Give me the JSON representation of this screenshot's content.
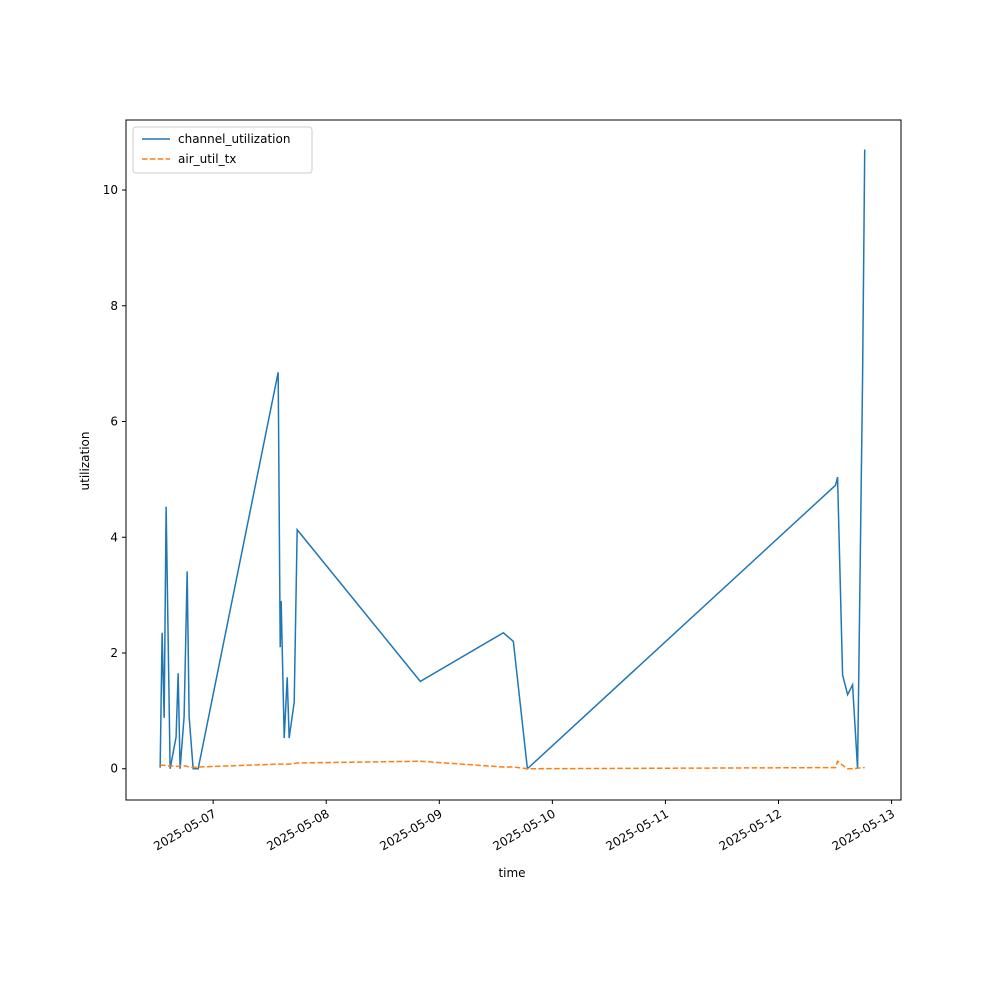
{
  "chart_data": {
    "type": "line",
    "xlabel": "time",
    "ylabel": "utilization",
    "x": [
      "2025-05-06 12:45",
      "2025-05-06 13:10",
      "2025-05-06 13:36",
      "2025-05-06 14:01",
      "2025-05-06 14:52",
      "2025-05-06 16:08",
      "2025-05-06 16:34",
      "2025-05-06 16:59",
      "2025-05-06 17:50",
      "2025-05-06 18:29",
      "2025-05-06 18:54",
      "2025-05-06 19:45",
      "2025-05-06 20:49",
      "2025-05-07 13:48",
      "2025-05-07 14:14",
      "2025-05-07 14:26",
      "2025-05-07 15:05",
      "2025-05-07 15:43",
      "2025-05-07 16:08",
      "2025-05-07 17:12",
      "2025-05-07 17:50",
      "2025-05-08 19:58",
      "2025-05-09 13:36",
      "2025-05-09 15:43",
      "2025-05-09 18:42",
      "2025-05-12 12:07",
      "2025-05-12 12:32",
      "2025-05-12 13:36",
      "2025-05-12 14:40",
      "2025-05-12 15:43",
      "2025-05-12 16:47",
      "2025-05-12 17:51",
      "2025-05-12 18:18"
    ],
    "series": [
      {
        "name": "channel_utilization",
        "color": "#1f77b4",
        "dash": false,
        "values": [
          0.02,
          2.35,
          0.88,
          4.53,
          0.0,
          0.55,
          1.65,
          0.0,
          0.9,
          3.41,
          0.9,
          0.0,
          0.0,
          6.85,
          2.1,
          2.9,
          0.53,
          1.58,
          0.53,
          1.15,
          4.13,
          1.51,
          2.35,
          2.2,
          0.0,
          4.9,
          5.04,
          1.62,
          1.28,
          1.45,
          0.0,
          6.8,
          10.7
        ]
      },
      {
        "name": "air_util_tx",
        "color": "#ff7f0e",
        "dash": true,
        "values": [
          0.07,
          0.06,
          0.06,
          0.05,
          0.05,
          0.04,
          0.04,
          0.05,
          0.05,
          0.04,
          0.03,
          0.02,
          0.03,
          0.08,
          0.08,
          0.08,
          0.08,
          0.08,
          0.08,
          0.09,
          0.1,
          0.13,
          0.03,
          0.03,
          0.0,
          0.02,
          0.13,
          0.06,
          0.0,
          0.0,
          0.01,
          0.02,
          0.02
        ]
      }
    ],
    "xlim": [
      "2025-05-06 05:30",
      "2025-05-13 02:00"
    ],
    "xticks": [
      "2025-05-07",
      "2025-05-08",
      "2025-05-09",
      "2025-05-10",
      "2025-05-11",
      "2025-05-12",
      "2025-05-13"
    ],
    "ylim": [
      -0.54,
      11.21
    ],
    "yticks": [
      0,
      2,
      4,
      6,
      8,
      10
    ],
    "grid": false,
    "legend": "upper-left"
  }
}
